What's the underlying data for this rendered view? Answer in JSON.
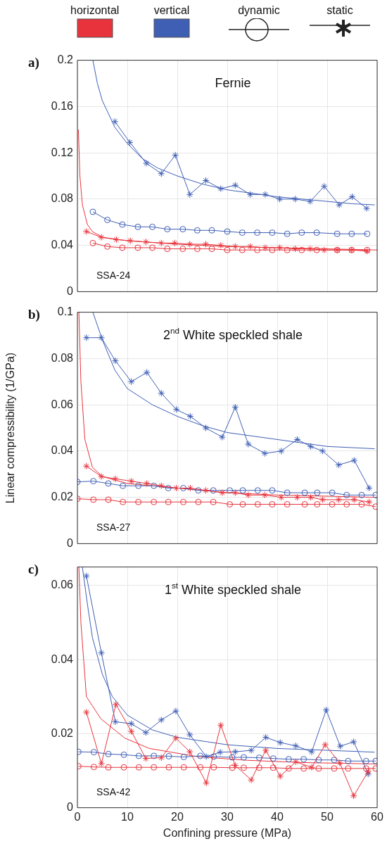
{
  "chart_data": [
    {
      "type": "other",
      "annotations": [
        "horizontal",
        "vertical",
        "dynamic",
        "static"
      ]
    },
    {
      "type": "line",
      "title": "Fernie",
      "annotations": [
        "a)",
        "SSA-24"
      ],
      "xlim": [
        0,
        60
      ],
      "xticks": [
        0,
        10,
        20,
        30,
        40,
        50,
        60
      ],
      "ylim": [
        0,
        0.2
      ],
      "yticks": [
        0,
        0.04,
        0.08,
        0.12,
        0.16,
        0.2
      ],
      "tick_labels": "y",
      "grid": true,
      "series": [
        {
          "color": "#e8333c",
          "marker": "cross",
          "x": [
            1.8,
            4.8,
            7.8,
            10.6,
            13.7,
            16.8,
            19.5,
            22.5,
            25.7,
            28.7,
            31.6,
            34.6,
            37.6,
            40.5,
            43.6,
            46.6,
            49.4,
            52,
            54.9,
            58
          ],
          "values": [
            0.052,
            0.047,
            0.045,
            0.044,
            0.043,
            0.042,
            0.042,
            0.041,
            0.041,
            0.04,
            0.039,
            0.039,
            0.038,
            0.038,
            0.037,
            0.037,
            0.036,
            0.036,
            0.036,
            0.035
          ]
        },
        {
          "color": "#e8333c",
          "marker": "circle",
          "x": [
            3.1,
            6,
            9,
            12.1,
            15,
            18,
            21.1,
            24,
            26.9,
            30,
            33,
            36,
            39,
            42,
            44.9,
            47.9,
            52,
            54.9,
            58
          ],
          "values": [
            0.042,
            0.039,
            0.038,
            0.038,
            0.038,
            0.037,
            0.037,
            0.037,
            0.037,
            0.036,
            0.036,
            0.036,
            0.036,
            0.036,
            0.036,
            0.036,
            0.036,
            0.036,
            0.036
          ]
        },
        {
          "color": "#3f5fb5",
          "marker": "cross",
          "x": [
            7.5,
            10.5,
            13.8,
            16.8,
            19.6,
            22.5,
            25.7,
            28.7,
            31.6,
            34.6,
            37.6,
            40.5,
            43.6,
            46.6,
            49.4,
            52.4,
            55,
            57.9
          ],
          "values": [
            0.147,
            0.129,
            0.111,
            0.102,
            0.118,
            0.084,
            0.096,
            0.089,
            0.092,
            0.084,
            0.084,
            0.08,
            0.08,
            0.078,
            0.091,
            0.075,
            0.082,
            0.072
          ]
        },
        {
          "color": "#3f5fb5",
          "marker": "circle",
          "x": [
            3.1,
            6,
            9,
            12.1,
            15,
            18,
            21.1,
            24,
            26.9,
            30,
            33,
            36,
            39,
            42,
            44.9,
            47.9,
            52,
            54.9,
            58
          ],
          "values": [
            0.069,
            0.062,
            0.058,
            0.056,
            0.056,
            0.054,
            0.054,
            0.053,
            0.053,
            0.052,
            0.051,
            0.051,
            0.051,
            0.05,
            0.051,
            0.051,
            0.05,
            0.05,
            0.05
          ]
        },
        {
          "color": "#e8333c",
          "marker": "none",
          "x": [
            0.2,
            0.5,
            1,
            2,
            3,
            5,
            10,
            20,
            30,
            40,
            50,
            60
          ],
          "values": [
            0.14,
            0.1,
            0.075,
            0.058,
            0.052,
            0.047,
            0.044,
            0.041,
            0.039,
            0.038,
            0.037,
            0.036
          ]
        },
        {
          "color": "#3f5fb5",
          "marker": "none",
          "x": [
            3.1,
            4,
            5,
            7.5,
            10,
            13,
            16,
            20,
            25,
            30,
            35,
            40,
            45,
            50,
            55,
            59.5
          ],
          "values": [
            0.2,
            0.18,
            0.165,
            0.142,
            0.128,
            0.115,
            0.107,
            0.1,
            0.093,
            0.088,
            0.085,
            0.082,
            0.08,
            0.078,
            0.076,
            0.075
          ]
        }
      ]
    },
    {
      "type": "line",
      "title": "2$^{nd}$ White speckled shale",
      "ylabel": "Linear compressibility (1/GPa)",
      "annotations": [
        "b)",
        "SSA-27"
      ],
      "xlim": [
        0,
        60
      ],
      "xticks": [
        0,
        10,
        20,
        30,
        40,
        50,
        60
      ],
      "ylim": [
        0,
        0.1
      ],
      "yticks": [
        0,
        0.02,
        0.04,
        0.06,
        0.08,
        0.1
      ],
      "tick_labels": "y",
      "grid": true,
      "series": [
        {
          "color": "#e8333c",
          "marker": "cross",
          "x": [
            1.8,
            4.8,
            7.6,
            10.8,
            13.9,
            16.8,
            19.8,
            22.6,
            25.7,
            29,
            31.6,
            34.2,
            37.5,
            40.8,
            44,
            46.7,
            49.1,
            52.3,
            55.4,
            58.4
          ],
          "values": [
            0.0335,
            0.029,
            0.028,
            0.027,
            0.026,
            0.025,
            0.024,
            0.024,
            0.023,
            0.022,
            0.022,
            0.021,
            0.021,
            0.02,
            0.02,
            0.02,
            0.019,
            0.019,
            0.019,
            0.018
          ]
        },
        {
          "color": "#e8333c",
          "marker": "circle",
          "x": [
            0,
            3.2,
            6.2,
            9.1,
            12.2,
            15.3,
            18.2,
            21.2,
            24.2,
            27.2,
            30.5,
            33.1,
            36.1,
            39,
            42,
            45.5,
            48,
            51,
            53.9,
            56.9,
            59.7
          ],
          "values": [
            0.0194,
            0.019,
            0.019,
            0.018,
            0.018,
            0.018,
            0.018,
            0.018,
            0.018,
            0.018,
            0.017,
            0.017,
            0.017,
            0.017,
            0.017,
            0.017,
            0.017,
            0.017,
            0.017,
            0.017,
            0.016
          ]
        },
        {
          "color": "#3f5fb5",
          "marker": "cross",
          "x": [
            1.8,
            4.8,
            7.6,
            10.8,
            13.9,
            16.8,
            19.8,
            22.6,
            25.7,
            29,
            31.6,
            34.2,
            37.5,
            40.8,
            44,
            46.7,
            49.1,
            52.3,
            55.4,
            58.4
          ],
          "values": [
            0.089,
            0.089,
            0.079,
            0.07,
            0.074,
            0.065,
            0.058,
            0.055,
            0.05,
            0.046,
            0.059,
            0.043,
            0.039,
            0.04,
            0.045,
            0.042,
            0.04,
            0.034,
            0.036,
            0.024
          ]
        },
        {
          "color": "#3f5fb5",
          "marker": "circle",
          "x": [
            0,
            3.2,
            6.2,
            9.1,
            12.2,
            15.3,
            18.2,
            21.2,
            24.2,
            27.2,
            30.5,
            33.1,
            36.1,
            39,
            42,
            45.5,
            48,
            51,
            53.9,
            56.9,
            59.7
          ],
          "values": [
            0.0267,
            0.027,
            0.026,
            0.025,
            0.025,
            0.025,
            0.024,
            0.024,
            0.023,
            0.023,
            0.023,
            0.023,
            0.023,
            0.023,
            0.022,
            0.022,
            0.022,
            0.022,
            0.021,
            0.021,
            0.021
          ]
        },
        {
          "color": "#e8333c",
          "marker": "none",
          "x": [
            0.3,
            0.7,
            1.5,
            3,
            5,
            10,
            20,
            30,
            40,
            50,
            60
          ],
          "values": [
            0.1,
            0.07,
            0.045,
            0.033,
            0.029,
            0.026,
            0.024,
            0.022,
            0.021,
            0.0205,
            0.02
          ]
        },
        {
          "color": "#3f5fb5",
          "marker": "none",
          "x": [
            3.1,
            5,
            7.5,
            10,
            15,
            20,
            25,
            30,
            40,
            50,
            59.5
          ],
          "values": [
            0.1,
            0.088,
            0.075,
            0.067,
            0.06,
            0.055,
            0.051,
            0.048,
            0.045,
            0.042,
            0.041
          ]
        }
      ]
    },
    {
      "type": "line",
      "title": "1$^{st}$ White speckled shale",
      "xlabel": "Confining pressure (MPa)",
      "annotations": [
        "c)",
        "SSA-42"
      ],
      "xlim": [
        0,
        60
      ],
      "xticks": [
        0,
        10,
        20,
        30,
        40,
        50,
        60
      ],
      "ylim": [
        0,
        0.065
      ],
      "yticks": [
        0,
        0.02,
        0.04,
        0.06
      ],
      "grid": true,
      "series": [
        {
          "color": "#e8333c",
          "marker": "cross",
          "x": [
            1.8,
            4.8,
            7.7,
            10.8,
            13.7,
            16.8,
            19.7,
            22.5,
            25.8,
            28.7,
            31.6,
            34.8,
            37.7,
            40.6,
            43.7,
            46.9,
            49.6,
            52.5,
            55.3,
            58.2
          ],
          "values": [
            0.0258,
            0.0119,
            0.0279,
            0.0206,
            0.0133,
            0.0135,
            0.0188,
            0.0151,
            0.0067,
            0.0223,
            0.0114,
            0.0075,
            0.0155,
            0.0085,
            0.0124,
            0.0109,
            0.017,
            0.0121,
            0.0032,
            0.0098
          ]
        },
        {
          "color": "#e8333c",
          "marker": "circle",
          "x": [
            0.2,
            3.3,
            6.2,
            9.3,
            12.3,
            15.3,
            18.3,
            21.3,
            24.6,
            27.3,
            31,
            33.3,
            36.4,
            39.2,
            42.3,
            45.3,
            48.3,
            51.4,
            54.2,
            57.8,
            59.7
          ],
          "values": [
            0.0112,
            0.011,
            0.0109,
            0.0109,
            0.0109,
            0.0109,
            0.0109,
            0.0109,
            0.0109,
            0.0109,
            0.0108,
            0.0108,
            0.0108,
            0.0108,
            0.0106,
            0.0106,
            0.0106,
            0.0106,
            0.0106,
            0.0106,
            0.0106
          ]
        },
        {
          "color": "#3f5fb5",
          "marker": "cross",
          "x": [
            1.8,
            4.8,
            7.6,
            10.8,
            13.7,
            16.8,
            19.7,
            22.5,
            25.8,
            28.6,
            31.6,
            34.8,
            37.7,
            40.6,
            43.7,
            46.9,
            49.8,
            52.6,
            55.3,
            58.2
          ],
          "values": [
            0.0626,
            0.0418,
            0.0232,
            0.0227,
            0.0203,
            0.0237,
            0.0261,
            0.0197,
            0.0138,
            0.015,
            0.0151,
            0.0155,
            0.019,
            0.0176,
            0.0167,
            0.0151,
            0.0264,
            0.0166,
            0.0178,
            0.0091
          ]
        },
        {
          "color": "#3f5fb5",
          "marker": "circle",
          "x": [
            0.2,
            3.3,
            6.2,
            9.3,
            12.3,
            15.3,
            18.3,
            21.3,
            24.6,
            27.3,
            31,
            33.3,
            36.4,
            39.2,
            42.3,
            45.3,
            48.3,
            51.4,
            54.2,
            57.8,
            59.7
          ],
          "values": [
            0.0151,
            0.015,
            0.0145,
            0.0143,
            0.014,
            0.014,
            0.0139,
            0.0137,
            0.014,
            0.0138,
            0.0136,
            0.0136,
            0.0135,
            0.0133,
            0.0131,
            0.0131,
            0.0129,
            0.0129,
            0.0126,
            0.0126,
            0.0126
          ]
        },
        {
          "color": "#e8333c",
          "marker": "none",
          "x": [
            0.3,
            0.7,
            1.8,
            4.7,
            9.5,
            14.4,
            24,
            34,
            45,
            60
          ],
          "values": [
            0.065,
            0.05,
            0.03,
            0.024,
            0.0188,
            0.016,
            0.0138,
            0.0128,
            0.0122,
            0.0118
          ]
        },
        {
          "color": "#3f5fb5",
          "marker": "none",
          "x": [
            1,
            2,
            3,
            5,
            7,
            10,
            15,
            20,
            30,
            40,
            50,
            59.5
          ],
          "values": [
            0.065,
            0.055,
            0.046,
            0.036,
            0.03,
            0.025,
            0.021,
            0.019,
            0.017,
            0.016,
            0.0155,
            0.015
          ]
        }
      ]
    }
  ]
}
